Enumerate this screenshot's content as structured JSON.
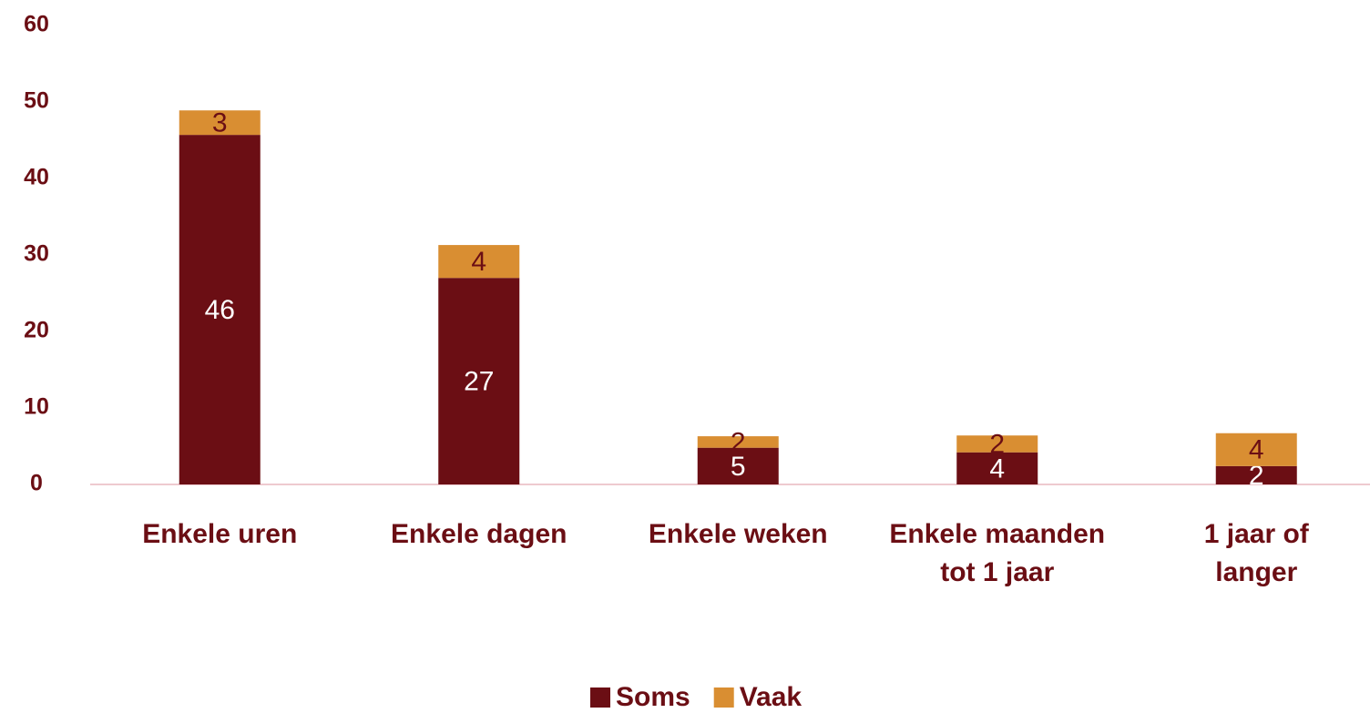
{
  "chart_data": {
    "type": "stacked_bar",
    "categories": [
      "Enkele uren",
      "Enkele dagen",
      "Enkele weken",
      "Enkele maanden tot 1 jaar",
      "1 jaar of langer"
    ],
    "series": [
      {
        "name": "Soms",
        "color": "#6b0e14",
        "values": [
          45.7,
          27.0,
          4.8,
          4.2,
          2.4
        ],
        "value_labels": [
          "46",
          "27",
          "5",
          "4",
          "2"
        ]
      },
      {
        "name": "Vaak",
        "color": "#d98e32",
        "values": [
          3.2,
          4.3,
          1.5,
          2.2,
          4.3
        ],
        "value_labels": [
          "3",
          "4",
          "2",
          "2",
          "4"
        ]
      }
    ],
    "ylim": [
      0,
      60
    ],
    "yticks": [
      0,
      10,
      20,
      30,
      40,
      50,
      60
    ],
    "grid": false
  }
}
